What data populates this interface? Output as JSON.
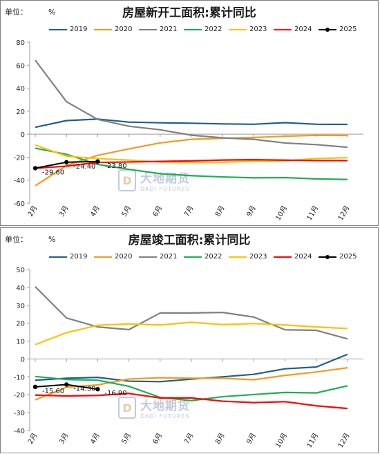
{
  "watermark": {
    "cn": "大地期货",
    "en": "DADI FUTURES"
  },
  "chart_data": [
    {
      "type": "line",
      "title": "房屋新开工面积:累计同比",
      "unit_label": "单位：",
      "unit": "%",
      "categories": [
        "2月",
        "3月",
        "4月",
        "5月",
        "6月",
        "7月",
        "8月",
        "9月",
        "10月",
        "11月",
        "12月"
      ],
      "ylim": [
        -60,
        80
      ],
      "yticks": [
        -60,
        -40,
        -20,
        0,
        20,
        40,
        60,
        80
      ],
      "grid": false,
      "legend_position": "top",
      "series": [
        {
          "name": "2019",
          "color": "#1f5f8b",
          "values": [
            6,
            11.8,
            13.1,
            10.5,
            9.9,
            9.5,
            8.9,
            8.6,
            10,
            8.6,
            8.5
          ]
        },
        {
          "name": "2020",
          "color": "#f39a1f",
          "values": [
            -44.9,
            -27.2,
            -18.4,
            -12.8,
            -7.6,
            -4.5,
            -3.6,
            -2.9,
            -1.8,
            -1,
            -1.2
          ]
        },
        {
          "name": "2021",
          "color": "#808080",
          "values": [
            64.3,
            28.2,
            12.8,
            6.9,
            3.8,
            -0.9,
            -3.2,
            -4.5,
            -7.7,
            -9.1,
            -11.4
          ]
        },
        {
          "name": "2022",
          "color": "#1bb04f",
          "values": [
            -12.2,
            -17.5,
            -26.3,
            -30.6,
            -34.4,
            -36.1,
            -37.2,
            -38,
            -37.8,
            -38.9,
            -39.4
          ]
        },
        {
          "name": "2023",
          "color": "#ffc000",
          "values": [
            -9.4,
            -19.2,
            -21.2,
            -22.6,
            -24.3,
            -24.5,
            -24.4,
            -23.4,
            -23.2,
            -21.2,
            -20.4
          ]
        },
        {
          "name": "2024",
          "color": "#ff0000",
          "values": [
            -29.7,
            -27.8,
            -24.6,
            -24.2,
            -23.7,
            -23.2,
            -22.5,
            -22.2,
            -22.6,
            -23,
            -23
          ]
        },
        {
          "name": "2025",
          "color": "#000000",
          "marker": true,
          "values": [
            -29.6,
            -24.4,
            -23.8,
            null,
            null,
            null,
            null,
            null,
            null,
            null,
            null
          ]
        }
      ],
      "annotations": [
        {
          "series": "2025",
          "index": 0,
          "text": "-29.60"
        },
        {
          "series": "2025",
          "index": 1,
          "text": "-24.40"
        },
        {
          "series": "2025",
          "index": 2,
          "text": "-23.80"
        }
      ]
    },
    {
      "type": "line",
      "title": "房屋竣工面积:累计同比",
      "unit_label": "单位：",
      "unit": "%",
      "categories": [
        "2月",
        "3月",
        "4月",
        "5月",
        "6月",
        "7月",
        "8月",
        "9月",
        "10月",
        "11月",
        "12月"
      ],
      "ylim": [
        -40,
        50
      ],
      "yticks": [
        -40,
        -30,
        -20,
        -10,
        0,
        10,
        20,
        30,
        40,
        50
      ],
      "grid": false,
      "legend_position": "top",
      "series": [
        {
          "name": "2019",
          "color": "#1f5f8b",
          "values": [
            -11.9,
            -10.8,
            -10.3,
            -12.4,
            -12.7,
            -11.3,
            -10,
            -8.6,
            -5.5,
            -4.5,
            2.6
          ]
        },
        {
          "name": "2020",
          "color": "#f39a1f",
          "values": [
            -22.9,
            -15.8,
            -14.5,
            -11.2,
            -10.5,
            -10.8,
            -10.8,
            -11.6,
            -9.2,
            -7.3,
            -4.9
          ]
        },
        {
          "name": "2021",
          "color": "#808080",
          "values": [
            40.4,
            22.9,
            17.9,
            16.4,
            25.7,
            25.7,
            26,
            23.4,
            16.3,
            16,
            11.2
          ]
        },
        {
          "name": "2022",
          "color": "#1bb04f",
          "values": [
            -9.8,
            -11.5,
            -11.9,
            -15.3,
            -21.5,
            -23.3,
            -21.1,
            -19.9,
            -18.7,
            -19,
            -15
          ]
        },
        {
          "name": "2023",
          "color": "#ffc000",
          "values": [
            8,
            14.7,
            18.8,
            19.6,
            19,
            20.5,
            19.2,
            19.8,
            19,
            17.9,
            17
          ]
        },
        {
          "name": "2024",
          "color": "#ff0000",
          "values": [
            -20.2,
            -20.7,
            -20.4,
            -19.3,
            -21.8,
            -21.8,
            -23.6,
            -24.4,
            -23.9,
            -26.2,
            -27.7
          ]
        },
        {
          "name": "2025",
          "color": "#000000",
          "marker": true,
          "values": [
            -15.6,
            -14.3,
            -16.9,
            null,
            null,
            null,
            null,
            null,
            null,
            null,
            null
          ]
        }
      ],
      "annotations": [
        {
          "series": "2025",
          "index": 0,
          "text": "-15.60"
        },
        {
          "series": "2025",
          "index": 1,
          "text": "-14.30"
        },
        {
          "series": "2025",
          "index": 2,
          "text": "-16.90"
        }
      ]
    }
  ]
}
